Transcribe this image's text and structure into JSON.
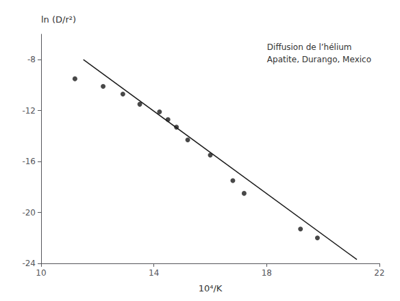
{
  "chart_data": {
    "type": "scatter",
    "xlabel": "10⁴/K",
    "ylabel": "ln (D/r²)",
    "annotations": [
      "Diffusion de l’hélium",
      "Apatite, Durango, Mexico"
    ],
    "series": [
      {
        "type": "line",
        "color": "#1a1a1a",
        "x": [
          11.5,
          21.2
        ],
        "values": [
          -8.0,
          -23.7
        ]
      },
      {
        "type": "scatter",
        "color": "#1a1a1a",
        "marker": "circle",
        "x": [
          11.2,
          12.2,
          12.9,
          13.5,
          14.2,
          14.5,
          14.8,
          15.2,
          16.0,
          16.8,
          17.2,
          19.2,
          19.8
        ],
        "values": [
          -9.5,
          -10.1,
          -10.7,
          -11.5,
          -12.1,
          -12.7,
          -13.3,
          -14.3,
          -15.5,
          -17.5,
          -18.5,
          -21.3,
          -22.0
        ]
      }
    ],
    "xlim": [
      10,
      22
    ],
    "ylim": [
      -24,
      -6
    ],
    "xticks": [
      10,
      14,
      18,
      22
    ],
    "yticks": [
      -8,
      -12,
      -16,
      -20,
      -24
    ],
    "grid": false
  }
}
